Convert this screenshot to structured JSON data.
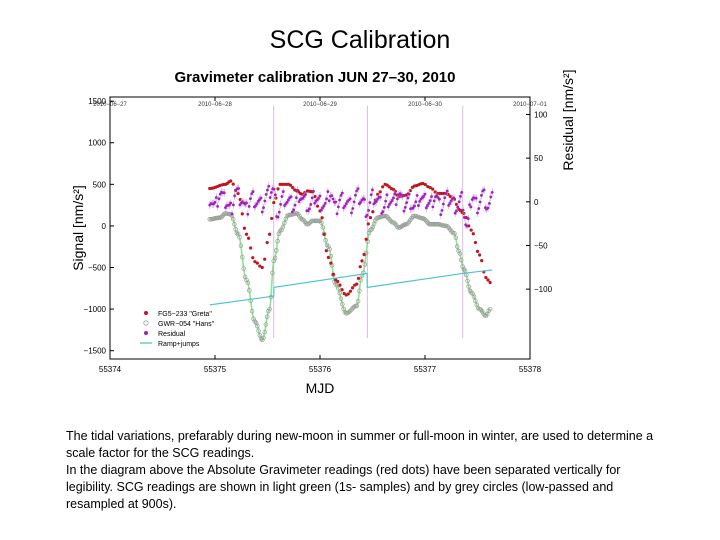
{
  "slide": {
    "title": "SCG Calibration",
    "caption_p1": "The tidal variations, prefarably during new-moon in summer or full-moon in winter, are used to determine a scale factor for the SCG readings.",
    "caption_p2": "In the diagram above the Absolute Gravimeter readings (red dots) have been separated vertically for legibility. SCG readings are shown in light green (1s- samples) and by grey circles (low-passed and resampled at 900s)."
  },
  "chart_data": {
    "type": "scatter",
    "title": "Gravimeter calibration JUN 27–30, 2010",
    "xlabel": "MJD",
    "ylabel": "Signal [nm/s²]",
    "y2label": "Residual [nm/s²]",
    "xlim": [
      55374,
      55378
    ],
    "ylim": [
      -1600,
      1550
    ],
    "y2lim": [
      -180,
      120
    ],
    "xticks": [
      55374,
      55375,
      55376,
      55377,
      55378
    ],
    "yticks": [
      1500,
      1000,
      500,
      0,
      -500,
      -1000,
      -1500
    ],
    "y2ticks": [
      100,
      50,
      0,
      -50,
      -100
    ],
    "y2_tick_labels": [
      "100",
      "50",
      "0",
      "−50",
      "−100"
    ],
    "ytick_labels": [
      "1500",
      "1000",
      "500",
      "0",
      "−500",
      "−1000",
      "−1500"
    ],
    "date_ticks": [
      {
        "mjd": 55374,
        "label": "2010−06−27"
      },
      {
        "mjd": 55375,
        "label": "2010−06−28"
      },
      {
        "mjd": 55376,
        "label": "2010−06−29"
      },
      {
        "mjd": 55377,
        "label": "2010−06−30"
      },
      {
        "mjd": 55378,
        "label": "2010−07−01"
      }
    ],
    "grid": false,
    "legend_position": "bottom-left",
    "legend": [
      {
        "label": "FG5−233 \"Greta\"",
        "marker": "dot",
        "color": "#c0161c"
      },
      {
        "label": "GWR−054 \"Hans\"",
        "marker": "circle",
        "color": "#9a9a9a"
      },
      {
        "label": "Residual",
        "marker": "dot",
        "color": "#a020c0"
      },
      {
        "label": "Ramp+jumps",
        "marker": "line",
        "color": "#4fc3d0"
      }
    ],
    "jump_markers": [
      55375.56,
      55376.45,
      55377.36
    ],
    "series": {
      "greta": {
        "color": "#c0161c",
        "x": [
          55374.95,
          55375.1,
          55375.15,
          55375.22,
          55375.3,
          55375.38,
          55375.45,
          55375.52,
          55375.56,
          55375.62,
          55375.7,
          55375.78,
          55375.83,
          55375.88,
          55375.93,
          55376.0,
          55376.08,
          55376.15,
          55376.25,
          55376.35,
          55376.4,
          55376.48,
          55376.55,
          55376.62,
          55376.7,
          55376.75,
          55376.82,
          55376.9,
          55376.98,
          55377.05,
          55377.12,
          55377.2,
          55377.28,
          55377.32,
          55377.37,
          55377.44,
          55377.52,
          55377.58,
          55377.62
        ],
        "y": [
          450,
          500,
          540,
          390,
          -100,
          -430,
          -500,
          -100,
          280,
          500,
          500,
          420,
          380,
          420,
          410,
          180,
          -380,
          -650,
          -830,
          -700,
          -420,
          100,
          380,
          500,
          440,
          350,
          370,
          480,
          510,
          460,
          390,
          390,
          320,
          200,
          150,
          -50,
          -350,
          -620,
          -680
        ]
      },
      "hans": {
        "color": "#9a9a9a",
        "x": [
          55374.95,
          55375.05,
          55375.1,
          55375.15,
          55375.22,
          55375.3,
          55375.38,
          55375.45,
          55375.52,
          55375.56,
          55375.62,
          55375.7,
          55375.78,
          55375.83,
          55375.88,
          55375.93,
          55376.0,
          55376.08,
          55376.15,
          55376.25,
          55376.35,
          55376.4,
          55376.48,
          55376.55,
          55376.62,
          55376.7,
          55376.75,
          55376.82,
          55376.9,
          55376.98,
          55377.05,
          55377.12,
          55377.2,
          55377.28,
          55377.32,
          55377.37,
          55377.44,
          55377.52,
          55377.58,
          55377.62
        ],
        "y": [
          80,
          100,
          150,
          140,
          -100,
          -650,
          -1150,
          -1370,
          -1000,
          -420,
          -60,
          130,
          150,
          80,
          20,
          60,
          60,
          -250,
          -700,
          -1050,
          -960,
          -600,
          -50,
          100,
          120,
          40,
          -20,
          20,
          120,
          90,
          20,
          20,
          0,
          -90,
          -300,
          -520,
          -800,
          -1000,
          -1080,
          -1000
        ]
      },
      "residual": {
        "color": "#a020c0",
        "x": [
          55374.95,
          55375.0,
          55375.05,
          55375.1,
          55375.15,
          55375.2,
          55375.25,
          55375.3,
          55375.35,
          55375.4,
          55375.45,
          55375.5,
          55375.55,
          55375.6,
          55375.65,
          55375.7,
          55375.75,
          55375.8,
          55375.85,
          55375.9,
          55375.95,
          55376.0,
          55376.05,
          55376.1,
          55376.15,
          55376.2,
          55376.25,
          55376.3,
          55376.35,
          55376.4,
          55376.45,
          55376.5,
          55376.55,
          55376.6,
          55376.65,
          55376.7,
          55376.75,
          55376.8,
          55376.85,
          55376.9,
          55376.95,
          55377.0,
          55377.05,
          55377.1,
          55377.15,
          55377.2,
          55377.25,
          55377.3,
          55377.35,
          55377.4,
          55377.45,
          55377.5,
          55377.55,
          55377.6,
          55377.64
        ],
        "y": [
          5,
          -5,
          10,
          0,
          -8,
          12,
          3,
          -10,
          6,
          0,
          -4,
          8,
          15,
          -12,
          4,
          0,
          -6,
          9,
          2,
          -7,
          5,
          0,
          -3,
          11,
          -9,
          4,
          0,
          -5,
          7,
          2,
          -10,
          6,
          1,
          -8,
          3,
          0,
          9,
          -4,
          2,
          -6,
          5,
          0,
          -2,
          8,
          -7,
          4,
          1,
          -5,
          3,
          -30,
          6,
          -4,
          8,
          -6,
          2
        ]
      },
      "ramp": {
        "color": "#4fc3d0",
        "x": [
          55374.95,
          55375.56,
          55375.56,
          55376.45,
          55376.45,
          55377.36,
          55377.64
        ],
        "y": [
          -118,
          -108,
          -98,
          -82,
          -98,
          -82,
          -78
        ]
      }
    }
  }
}
